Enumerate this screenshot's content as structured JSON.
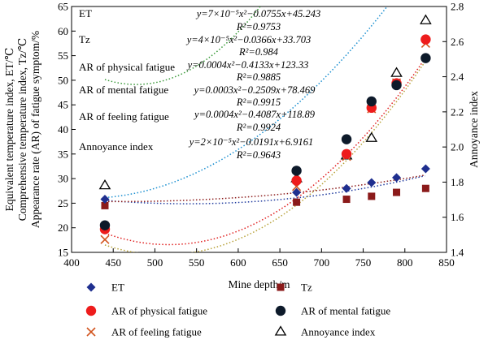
{
  "chart_data": {
    "type": "scatter",
    "x": [
      440,
      670,
      730,
      760,
      790,
      825
    ],
    "xlabel": "Mine depth/m",
    "xlim": [
      400,
      850
    ],
    "xticks": [
      400,
      450,
      500,
      550,
      600,
      650,
      700,
      750,
      800,
      850
    ],
    "ylabel_left": [
      "Equivalent temperature index, ET/℃",
      "Comprehensive temperature index, Tz/℃",
      "Appearance rate (AR) of fatigue symptom/%"
    ],
    "ylim_left": [
      15,
      65
    ],
    "yticks_left": [
      15,
      20,
      25,
      30,
      35,
      40,
      45,
      50,
      55,
      60,
      65
    ],
    "ylabel_right": "Annoyance index",
    "ylim_right": [
      1.4,
      2.8
    ],
    "yticks_right": [
      1.4,
      1.6,
      1.8,
      2.0,
      2.2,
      2.4,
      2.6,
      2.8
    ],
    "grid": false,
    "legend_position": "bottom",
    "series": [
      {
        "name": "ET",
        "axis": "left",
        "marker": "diamond",
        "color": "#1f2f8f",
        "trend_color": "#1f3a9e",
        "values": [
          25.8,
          27.2,
          28.0,
          29.2,
          30.2,
          32.0
        ],
        "label": "ET",
        "equation": "y=7×10⁻⁵x²−0.0755x+45.243",
        "r2": "R²=0.9753",
        "coef": [
          7e-05,
          -0.0755,
          45.243
        ]
      },
      {
        "name": "Tz",
        "axis": "left",
        "marker": "square",
        "color": "#8b1a1a",
        "trend_color": "#8b1a1a",
        "values": [
          24.5,
          25.2,
          25.8,
          26.4,
          27.2,
          28.0
        ],
        "label": "Tz",
        "equation": "y=4×10⁻⁵x²−0.0366x+33.703",
        "r2": "R²=0.984",
        "coef": [
          4e-05,
          -0.0366,
          33.703
        ]
      },
      {
        "name": "AR of physical fatigue",
        "axis": "left",
        "marker": "circle",
        "color": "#ee1c1c",
        "trend_color": "#e02020",
        "values": [
          19.7,
          29.6,
          35.0,
          44.4,
          49.4,
          58.3
        ],
        "label": "AR of physical fatigue",
        "equation": "y=0.0004x²−0.4133x+123.33",
        "r2": "R²=0.9885",
        "coef": [
          0.0004,
          -0.4133,
          123.33
        ]
      },
      {
        "name": "AR of mental fatigue",
        "axis": "left",
        "marker": "circle",
        "color": "#0d1a2a",
        "trend_color": "#1a8fd0",
        "values": [
          20.5,
          31.6,
          38.0,
          45.7,
          49.0,
          54.5
        ],
        "label": "AR of mental fatigue",
        "equation": "y=0.0003x²−0.2509x+78.469",
        "r2": "R²=0.9915",
        "coef": [
          0.0003,
          -0.2509,
          78.469
        ]
      },
      {
        "name": "AR of feeling fatigue",
        "axis": "left",
        "marker": "x",
        "color": "#d2541e",
        "trend_color": "#b8a23a",
        "values": [
          17.6,
          28.4,
          34.5,
          44.2,
          49.5,
          57.5
        ],
        "label": "AR of feeling fatigue",
        "equation": "y=0.0004x²−0.4087x+118.89",
        "r2": "R²=0.9924",
        "coef": [
          0.0004,
          -0.4087,
          118.89
        ]
      },
      {
        "name": "Annoyance index",
        "axis": "right",
        "marker": "triangle",
        "color": "#000000",
        "trend_color": "#3a9a3a",
        "values": [
          1.78,
          1.82,
          1.95,
          2.05,
          2.42,
          2.72
        ],
        "label": "Annoyance index",
        "equation": "y=2×10⁻⁵x²−0.0191x+6.9161",
        "r2": "R²=0.9643",
        "coef": [
          2e-05,
          -0.0191,
          6.9161
        ]
      }
    ]
  }
}
